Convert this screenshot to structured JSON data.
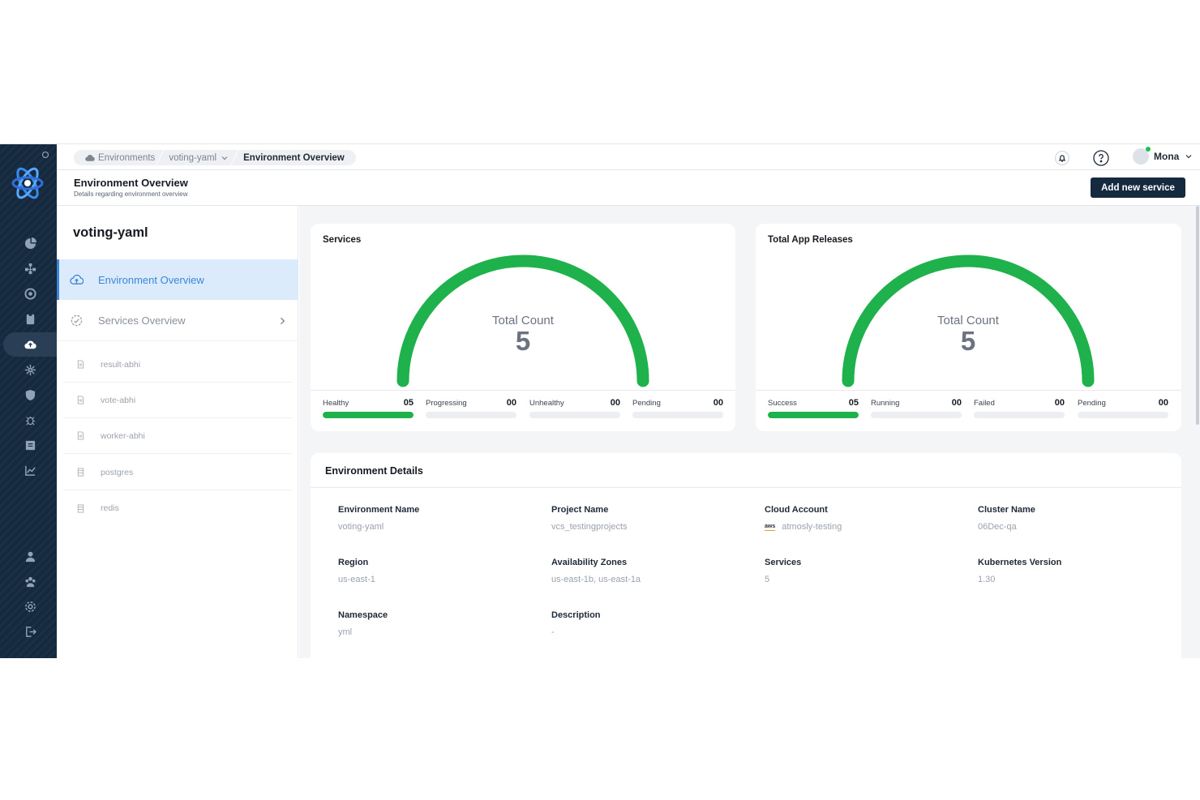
{
  "breadcrumbs": [
    {
      "label": "Environments",
      "icon": "cloud-icon"
    },
    {
      "label": "voting-yaml",
      "icon": "chevron-down-icon"
    },
    {
      "label": "Environment Overview"
    }
  ],
  "user": {
    "name": "Mona"
  },
  "header": {
    "title": "Environment Overview",
    "subtitle": "Details regarding environment overview",
    "add_button": "Add new service"
  },
  "env_panel": {
    "name": "voting-yaml",
    "menu": [
      {
        "label": "Environment Overview",
        "active": true
      },
      {
        "label": "Services Overview",
        "active": false
      }
    ],
    "services": [
      "result-abhi",
      "vote-abhi",
      "worker-abhi",
      "postgres",
      "redis"
    ]
  },
  "services_card": {
    "title": "Services",
    "gauge_label": "Total Count",
    "gauge_value": "5",
    "gauge_color": "#1fb14b",
    "stats": [
      {
        "name": "Healthy",
        "value": "05",
        "fill": 1.0
      },
      {
        "name": "Progressing",
        "value": "00",
        "fill": 0
      },
      {
        "name": "Unhealthy",
        "value": "00",
        "fill": 0
      },
      {
        "name": "Pending",
        "value": "00",
        "fill": 0
      }
    ]
  },
  "releases_card": {
    "title": "Total App Releases",
    "gauge_label": "Total Count",
    "gauge_value": "5",
    "gauge_color": "#1fb14b",
    "stats": [
      {
        "name": "Success",
        "value": "05",
        "fill": 1.0
      },
      {
        "name": "Running",
        "value": "00",
        "fill": 0
      },
      {
        "name": "Failed",
        "value": "00",
        "fill": 0
      },
      {
        "name": "Pending",
        "value": "00",
        "fill": 0
      }
    ]
  },
  "details": {
    "title": "Environment Details",
    "fields": [
      {
        "label": "Environment Name",
        "value": "voting-yaml"
      },
      {
        "label": "Project Name",
        "value": "vcs_testingprojects"
      },
      {
        "label": "Cloud Account",
        "value": "atmosly-testing",
        "badge": "aws"
      },
      {
        "label": "Cluster Name",
        "value": "06Dec-qa"
      },
      {
        "label": "Region",
        "value": "us-east-1"
      },
      {
        "label": "Availability Zones",
        "value": "us-east-1b, us-east-1a"
      },
      {
        "label": "Services",
        "value": "5"
      },
      {
        "label": "Kubernetes Version",
        "value": "1.30"
      },
      {
        "label": "Namespace",
        "value": "yml"
      },
      {
        "label": "Description",
        "value": "-"
      }
    ]
  },
  "colors": {
    "rail": "#15293f",
    "accent": "#3b86d8",
    "success": "#1fb14b",
    "button": "#15293f"
  }
}
